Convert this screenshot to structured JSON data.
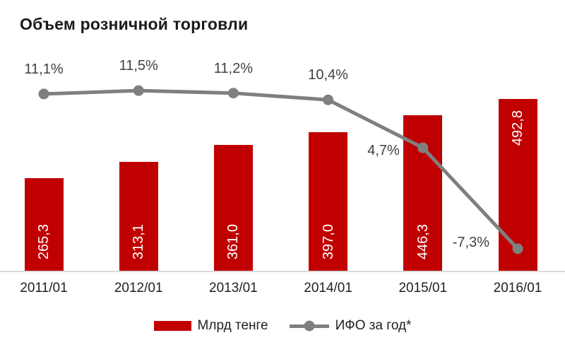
{
  "chart_data": {
    "type": "bar",
    "title": "Объем розничной торговли",
    "categories": [
      "2011/01",
      "2012/01",
      "2013/01",
      "2014/01",
      "2015/01",
      "2016/01"
    ],
    "series": [
      {
        "name": "Млрд тенге",
        "type": "bar",
        "color": "#c00000",
        "values": [
          265.3,
          313.1,
          361.0,
          397.0,
          446.3,
          492.8
        ],
        "value_labels": [
          "265,3",
          "313,1",
          "361,0",
          "397,0",
          "446,3",
          "492,8"
        ],
        "label_color": "#ffffff"
      },
      {
        "name": "ИФО за год*",
        "type": "line",
        "color": "#7f7f7f",
        "values": [
          11.1,
          11.5,
          11.2,
          10.4,
          4.7,
          -7.3
        ],
        "value_labels": [
          "11,1%",
          "11,5%",
          "11,2%",
          "10,4%",
          "4,7%",
          "-7,3%"
        ],
        "label_color": "#404040"
      }
    ],
    "legend_position": "bottom",
    "grid": false,
    "y_axis": "hidden",
    "x_axis_line_color": "#d9d9d9"
  }
}
